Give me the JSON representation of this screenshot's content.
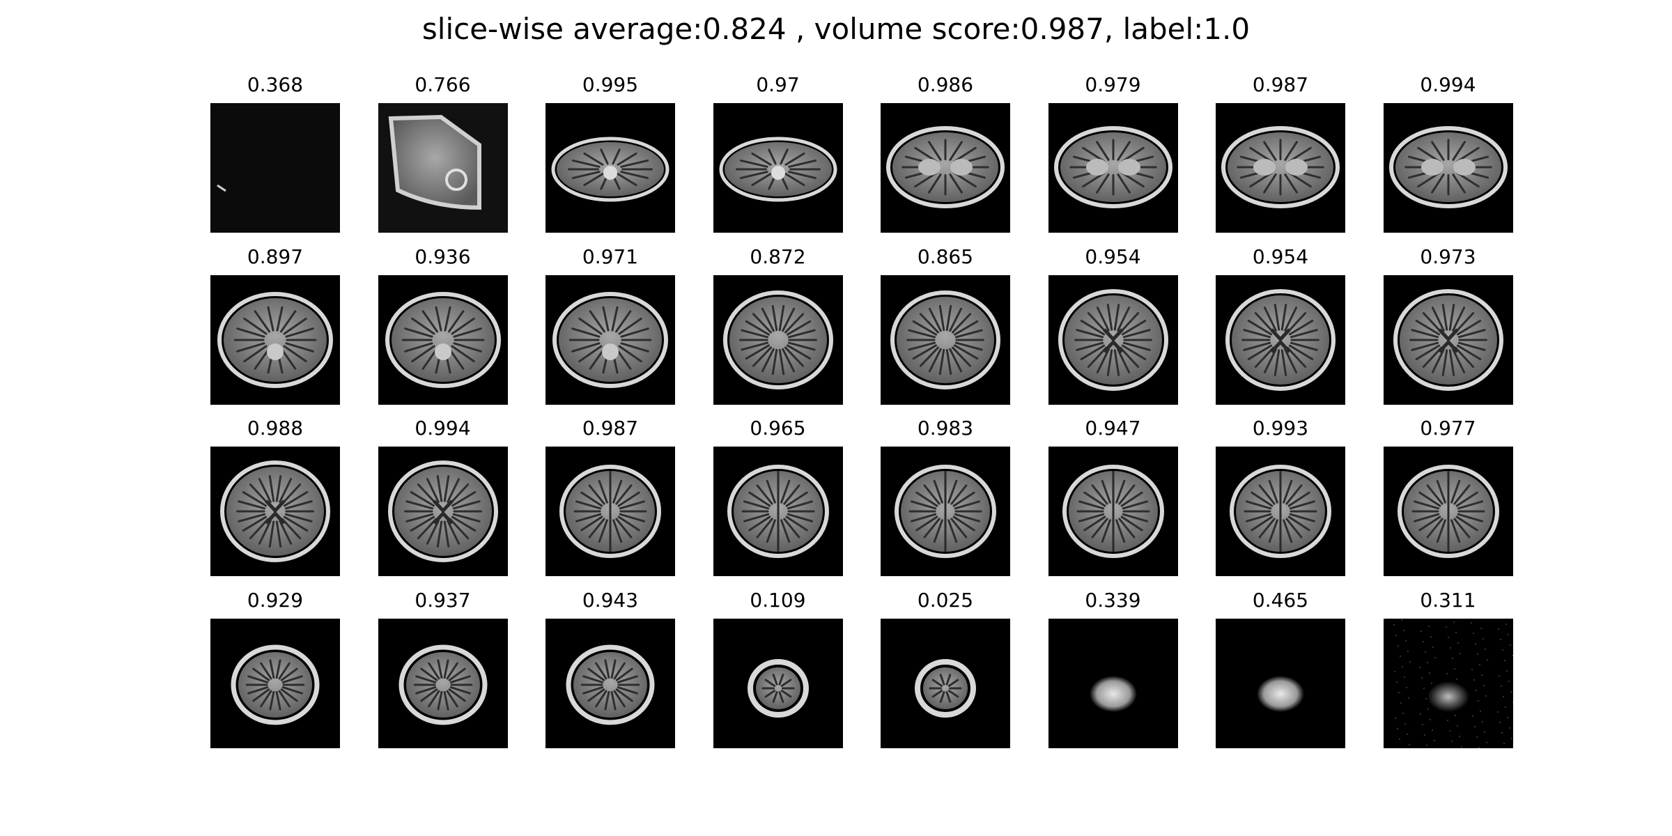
{
  "figure": {
    "title": "slice-wise average:0.824 , volume score:0.987, label:1.0"
  },
  "slices": [
    {
      "score": "0.368",
      "type": "edge"
    },
    {
      "score": "0.766",
      "type": "tilted"
    },
    {
      "score": "0.995",
      "type": "base"
    },
    {
      "score": "0.97",
      "type": "base"
    },
    {
      "score": "0.986",
      "type": "base2"
    },
    {
      "score": "0.979",
      "type": "base2"
    },
    {
      "score": "0.987",
      "type": "base2"
    },
    {
      "score": "0.994",
      "type": "base2"
    },
    {
      "score": "0.897",
      "type": "mid-low"
    },
    {
      "score": "0.936",
      "type": "mid-low"
    },
    {
      "score": "0.971",
      "type": "mid-low"
    },
    {
      "score": "0.872",
      "type": "mid"
    },
    {
      "score": "0.865",
      "type": "mid"
    },
    {
      "score": "0.954",
      "type": "mid-vent"
    },
    {
      "score": "0.954",
      "type": "mid-vent"
    },
    {
      "score": "0.973",
      "type": "mid-vent"
    },
    {
      "score": "0.988",
      "type": "mid-vent"
    },
    {
      "score": "0.994",
      "type": "mid-vent"
    },
    {
      "score": "0.987",
      "type": "upper"
    },
    {
      "score": "0.965",
      "type": "upper"
    },
    {
      "score": "0.983",
      "type": "upper"
    },
    {
      "score": "0.947",
      "type": "upper"
    },
    {
      "score": "0.993",
      "type": "upper"
    },
    {
      "score": "0.977",
      "type": "upper"
    },
    {
      "score": "0.929",
      "type": "top"
    },
    {
      "score": "0.937",
      "type": "top"
    },
    {
      "score": "0.943",
      "type": "top"
    },
    {
      "score": "0.109",
      "type": "small"
    },
    {
      "score": "0.025",
      "type": "small"
    },
    {
      "score": "0.339",
      "type": "blob"
    },
    {
      "score": "0.465",
      "type": "blob"
    },
    {
      "score": "0.311",
      "type": "noise"
    }
  ]
}
